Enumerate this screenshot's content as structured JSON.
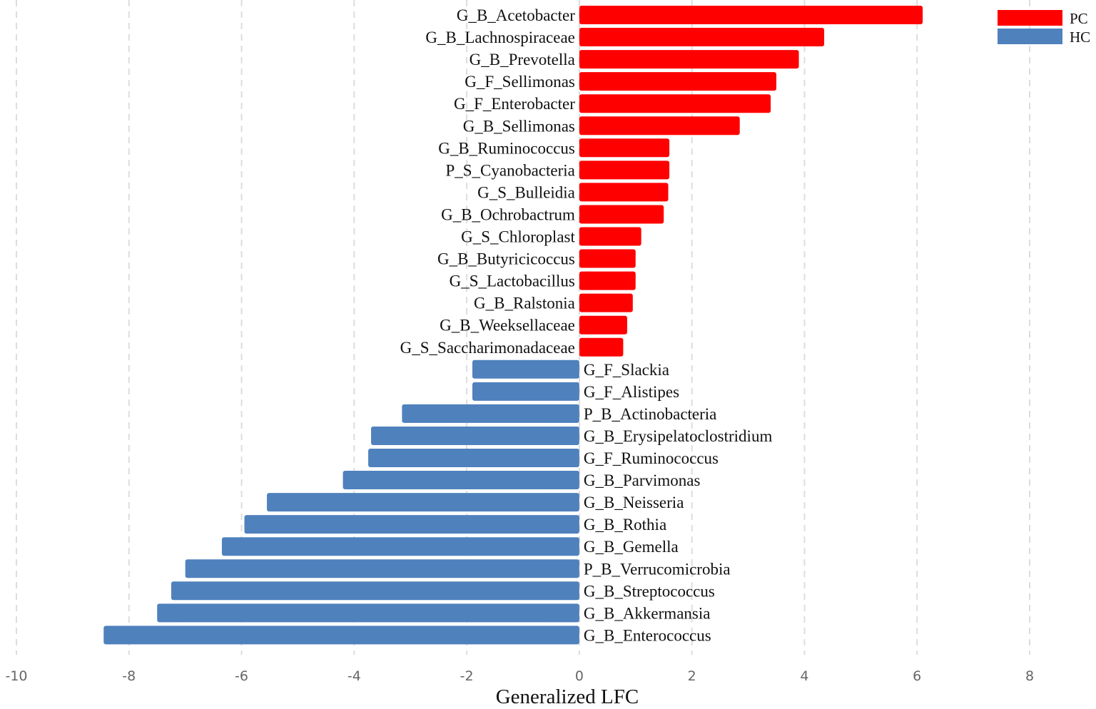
{
  "chart_data": {
    "type": "bar",
    "orientation": "horizontal",
    "xlabel": "Generalized LFC",
    "xlim": [
      -10,
      8
    ],
    "xticks": [
      -10,
      -8,
      -6,
      -4,
      -2,
      0,
      2,
      4,
      6,
      8
    ],
    "grid": true,
    "legend_position": "top-right",
    "series": [
      {
        "name": "PC",
        "color": "#ff0000"
      },
      {
        "name": "HC",
        "color": "#4f81bd"
      }
    ],
    "bars": [
      {
        "label": "G_B_Acetobacter",
        "value": 6.1,
        "group": "PC"
      },
      {
        "label": "G_B_Lachnospiraceae",
        "value": 4.35,
        "group": "PC"
      },
      {
        "label": "G_B_Prevotella",
        "value": 3.9,
        "group": "PC"
      },
      {
        "label": "G_F_Sellimonas",
        "value": 3.5,
        "group": "PC"
      },
      {
        "label": "G_F_Enterobacter",
        "value": 3.4,
        "group": "PC"
      },
      {
        "label": "G_B_Sellimonas",
        "value": 2.85,
        "group": "PC"
      },
      {
        "label": "G_B_Ruminococcus",
        "value": 1.6,
        "group": "PC"
      },
      {
        "label": "P_S_Cyanobacteria",
        "value": 1.6,
        "group": "PC"
      },
      {
        "label": "G_S_Bulleidia",
        "value": 1.58,
        "group": "PC"
      },
      {
        "label": "G_B_Ochrobactrum",
        "value": 1.5,
        "group": "PC"
      },
      {
        "label": "G_S_Chloroplast",
        "value": 1.1,
        "group": "PC"
      },
      {
        "label": "G_B_Butyricicoccus",
        "value": 1.0,
        "group": "PC"
      },
      {
        "label": "G_S_Lactobacillus",
        "value": 1.0,
        "group": "PC"
      },
      {
        "label": "G_B_Ralstonia",
        "value": 0.95,
        "group": "PC"
      },
      {
        "label": "G_B_Weeksellaceae",
        "value": 0.85,
        "group": "PC"
      },
      {
        "label": "G_S_Saccharimonadaceae",
        "value": 0.78,
        "group": "PC"
      },
      {
        "label": "G_F_Slackia",
        "value": -1.9,
        "group": "HC"
      },
      {
        "label": "G_F_Alistipes",
        "value": -1.9,
        "group": "HC"
      },
      {
        "label": "P_B_Actinobacteria",
        "value": -3.15,
        "group": "HC"
      },
      {
        "label": "G_B_Erysipelatoclostridium",
        "value": -3.7,
        "group": "HC"
      },
      {
        "label": "G_F_Ruminococcus",
        "value": -3.75,
        "group": "HC"
      },
      {
        "label": "G_B_Parvimonas",
        "value": -4.2,
        "group": "HC"
      },
      {
        "label": "G_B_Neisseria",
        "value": -5.55,
        "group": "HC"
      },
      {
        "label": "G_B_Rothia",
        "value": -5.95,
        "group": "HC"
      },
      {
        "label": "G_B_Gemella",
        "value": -6.35,
        "group": "HC"
      },
      {
        "label": "P_B_Verrucomicrobia",
        "value": -7.0,
        "group": "HC"
      },
      {
        "label": "G_B_Streptococcus",
        "value": -7.25,
        "group": "HC"
      },
      {
        "label": "G_B_Akkermansia",
        "value": -7.5,
        "group": "HC"
      },
      {
        "label": "G_B_Enterococcus",
        "value": -8.45,
        "group": "HC"
      }
    ]
  }
}
